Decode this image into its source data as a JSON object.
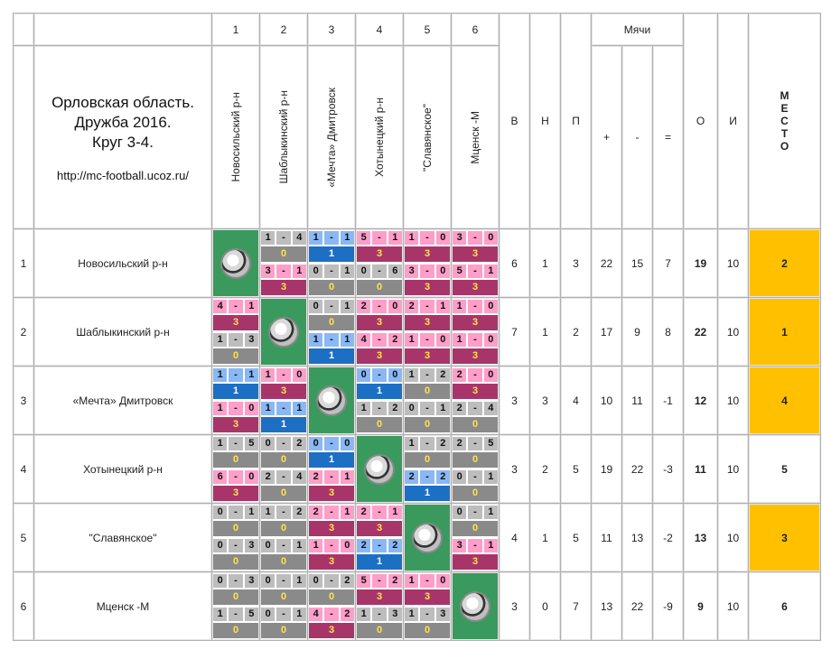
{
  "header": {
    "title_line1": "Орловская область.",
    "title_line2": "Дружба 2016.",
    "title_line3": "Круг 3-4.",
    "url": "http://mc-football.ucoz.ru/",
    "col_numbers": [
      "1",
      "2",
      "3",
      "4",
      "5",
      "6"
    ],
    "team_columns": [
      "Новосильский р-н",
      "Шаблыкинский р-н",
      "«Мечта» Дмитровск",
      "Хотынецкий р-н",
      "\"Славянское\"",
      "Мценск -М"
    ],
    "goals_label": "Мячи",
    "stat_labels": {
      "w": "В",
      "d": "Н",
      "l": "П",
      "gf": "+",
      "ga": "-",
      "gd": "=",
      "pts": "О",
      "gp": "И"
    },
    "place_label": "М Е С Т О"
  },
  "teams": [
    {
      "num": "1",
      "name": "Новосильский р-н",
      "w": "6",
      "d": "1",
      "l": "3",
      "gf": "22",
      "ga": "15",
      "gd": "7",
      "pts": "19",
      "gp": "10",
      "place": "2",
      "gold": true,
      "results": [
        null,
        [
          [
            "1",
            "4",
            "0"
          ],
          [
            "3",
            "1",
            "3"
          ]
        ],
        [
          [
            "1",
            "1",
            "1"
          ],
          [
            "0",
            "1",
            "0"
          ]
        ],
        [
          [
            "5",
            "1",
            "3"
          ],
          [
            "0",
            "6",
            "0"
          ]
        ],
        [
          [
            "1",
            "0",
            "3"
          ],
          [
            "3",
            "0",
            "3"
          ]
        ],
        [
          [
            "3",
            "0",
            "3"
          ],
          [
            "5",
            "1",
            "3"
          ]
        ]
      ]
    },
    {
      "num": "2",
      "name": "Шаблыкинский р-н",
      "w": "7",
      "d": "1",
      "l": "2",
      "gf": "17",
      "ga": "9",
      "gd": "8",
      "pts": "22",
      "gp": "10",
      "place": "1",
      "gold": true,
      "results": [
        [
          [
            "4",
            "1",
            "3"
          ],
          [
            "1",
            "3",
            "0"
          ]
        ],
        null,
        [
          [
            "0",
            "1",
            "0"
          ],
          [
            "1",
            "1",
            "1"
          ]
        ],
        [
          [
            "2",
            "0",
            "3"
          ],
          [
            "4",
            "2",
            "3"
          ]
        ],
        [
          [
            "2",
            "1",
            "3"
          ],
          [
            "1",
            "0",
            "3"
          ]
        ],
        [
          [
            "1",
            "0",
            "3"
          ],
          [
            "1",
            "0",
            "3"
          ]
        ]
      ]
    },
    {
      "num": "3",
      "name": "«Мечта» Дмитровск",
      "w": "3",
      "d": "3",
      "l": "4",
      "gf": "10",
      "ga": "11",
      "gd": "-1",
      "pts": "12",
      "gp": "10",
      "place": "4",
      "gold": true,
      "results": [
        [
          [
            "1",
            "1",
            "1"
          ],
          [
            "1",
            "0",
            "3"
          ]
        ],
        [
          [
            "1",
            "0",
            "3"
          ],
          [
            "1",
            "1",
            "1"
          ]
        ],
        null,
        [
          [
            "0",
            "0",
            "1"
          ],
          [
            "1",
            "2",
            "0"
          ]
        ],
        [
          [
            "1",
            "2",
            "0"
          ],
          [
            "0",
            "1",
            "0"
          ]
        ],
        [
          [
            "2",
            "0",
            "3"
          ],
          [
            "2",
            "4",
            "0"
          ]
        ]
      ]
    },
    {
      "num": "4",
      "name": "Хотынецкий р-н",
      "w": "3",
      "d": "2",
      "l": "5",
      "gf": "19",
      "ga": "22",
      "gd": "-3",
      "pts": "11",
      "gp": "10",
      "place": "5",
      "gold": false,
      "results": [
        [
          [
            "1",
            "5",
            "0"
          ],
          [
            "6",
            "0",
            "3"
          ]
        ],
        [
          [
            "0",
            "2",
            "0"
          ],
          [
            "2",
            "4",
            "0"
          ]
        ],
        [
          [
            "0",
            "0",
            "1"
          ],
          [
            "2",
            "1",
            "3"
          ]
        ],
        null,
        [
          [
            "1",
            "2",
            "0"
          ],
          [
            "2",
            "2",
            "1"
          ]
        ],
        [
          [
            "2",
            "5",
            "0"
          ],
          [
            "0",
            "1",
            "0"
          ]
        ]
      ]
    },
    {
      "num": "5",
      "name": "\"Славянское\"",
      "w": "4",
      "d": "1",
      "l": "5",
      "gf": "11",
      "ga": "13",
      "gd": "-2",
      "pts": "13",
      "gp": "10",
      "place": "3",
      "gold": true,
      "results": [
        [
          [
            "0",
            "1",
            "0"
          ],
          [
            "0",
            "3",
            "0"
          ]
        ],
        [
          [
            "1",
            "2",
            "0"
          ],
          [
            "0",
            "1",
            "0"
          ]
        ],
        [
          [
            "2",
            "1",
            "3"
          ],
          [
            "1",
            "0",
            "3"
          ]
        ],
        [
          [
            "2",
            "1",
            "3"
          ],
          [
            "2",
            "2",
            "1"
          ]
        ],
        null,
        [
          [
            "0",
            "1",
            "0"
          ],
          [
            "3",
            "1",
            "3"
          ]
        ]
      ]
    },
    {
      "num": "6",
      "name": "Мценск -М",
      "w": "3",
      "d": "0",
      "l": "7",
      "gf": "13",
      "ga": "22",
      "gd": "-9",
      "pts": "9",
      "gp": "10",
      "place": "6",
      "gold": false,
      "results": [
        [
          [
            "0",
            "3",
            "0"
          ],
          [
            "1",
            "5",
            "0"
          ]
        ],
        [
          [
            "0",
            "1",
            "0"
          ],
          [
            "0",
            "1",
            "0"
          ]
        ],
        [
          [
            "0",
            "2",
            "0"
          ],
          [
            "4",
            "2",
            "3"
          ]
        ],
        [
          [
            "5",
            "2",
            "3"
          ],
          [
            "1",
            "3",
            "0"
          ]
        ],
        [
          [
            "1",
            "0",
            "3"
          ],
          [
            "1",
            "3",
            "0"
          ]
        ],
        null
      ]
    }
  ],
  "icons": {
    "diagonal": "soccer-ball-icon"
  },
  "colors": {
    "win": "#ff9ec9",
    "draw": "#8ab8f5",
    "loss": "#bdbdbd",
    "diagonal": "#3a9a5e",
    "gold": "#ffc000"
  }
}
